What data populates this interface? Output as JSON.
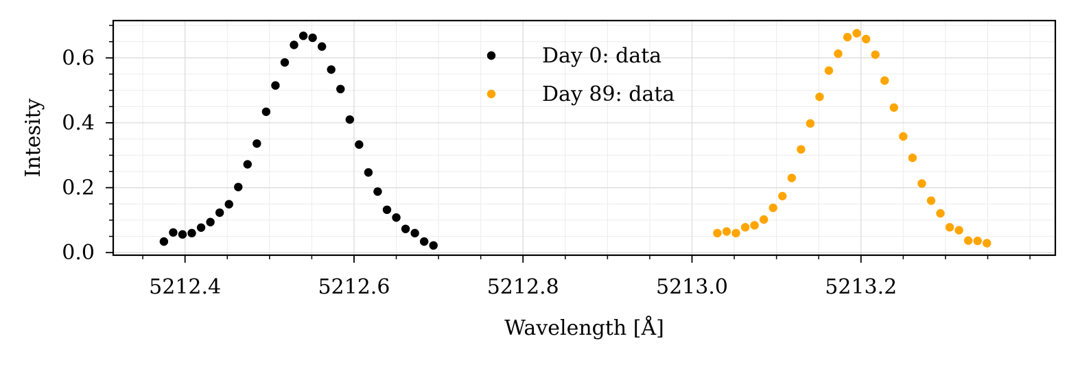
{
  "chart_data": {
    "type": "scatter",
    "title": "",
    "xlabel": "Wavelength [Å]",
    "ylabel": "Intesity",
    "xlim": [
      5212.315,
      5213.43
    ],
    "ylim": [
      -0.008,
      0.715
    ],
    "x_ticks": [
      5212.4,
      5212.6,
      5212.8,
      5213.0,
      5213.2
    ],
    "x_tick_labels": [
      "5212.4",
      "5212.6",
      "5212.8",
      "5213.0",
      "5213.2"
    ],
    "y_ticks": [
      0.0,
      0.2,
      0.4,
      0.6
    ],
    "y_tick_labels": [
      "0.0",
      "0.2",
      "0.4",
      "0.6"
    ],
    "grid": true,
    "legend_position": "top-center",
    "series": [
      {
        "name": "Day 0: data",
        "color": "#000000",
        "x": [
          5212.375,
          5212.386,
          5212.397,
          5212.408,
          5212.419,
          5212.43,
          5212.441,
          5212.452,
          5212.463,
          5212.474,
          5212.485,
          5212.496,
          5212.507,
          5212.518,
          5212.529,
          5212.54,
          5212.551,
          5212.562,
          5212.573,
          5212.584,
          5212.595,
          5212.606,
          5212.617,
          5212.628,
          5212.639,
          5212.65,
          5212.661,
          5212.672,
          5212.683,
          5212.694
        ],
        "y": [
          0.034,
          0.062,
          0.056,
          0.06,
          0.077,
          0.094,
          0.123,
          0.149,
          0.202,
          0.272,
          0.336,
          0.434,
          0.515,
          0.586,
          0.64,
          0.668,
          0.662,
          0.635,
          0.564,
          0.504,
          0.41,
          0.333,
          0.247,
          0.188,
          0.132,
          0.108,
          0.073,
          0.06,
          0.034,
          0.022
        ]
      },
      {
        "name": "Day 89: data",
        "color": "#ffa500",
        "x": [
          5213.03,
          5213.041,
          5213.052,
          5213.063,
          5213.074,
          5213.085,
          5213.096,
          5213.107,
          5213.118,
          5213.129,
          5213.14,
          5213.151,
          5213.162,
          5213.173,
          5213.184,
          5213.195,
          5213.206,
          5213.217,
          5213.228,
          5213.239,
          5213.25,
          5213.261,
          5213.272,
          5213.283,
          5213.294,
          5213.305,
          5213.316,
          5213.327,
          5213.338,
          5213.349
        ],
        "y": [
          0.06,
          0.065,
          0.06,
          0.078,
          0.084,
          0.102,
          0.138,
          0.174,
          0.23,
          0.318,
          0.398,
          0.48,
          0.561,
          0.613,
          0.664,
          0.676,
          0.658,
          0.61,
          0.53,
          0.447,
          0.358,
          0.292,
          0.213,
          0.16,
          0.121,
          0.078,
          0.069,
          0.037,
          0.036,
          0.029
        ]
      }
    ]
  }
}
